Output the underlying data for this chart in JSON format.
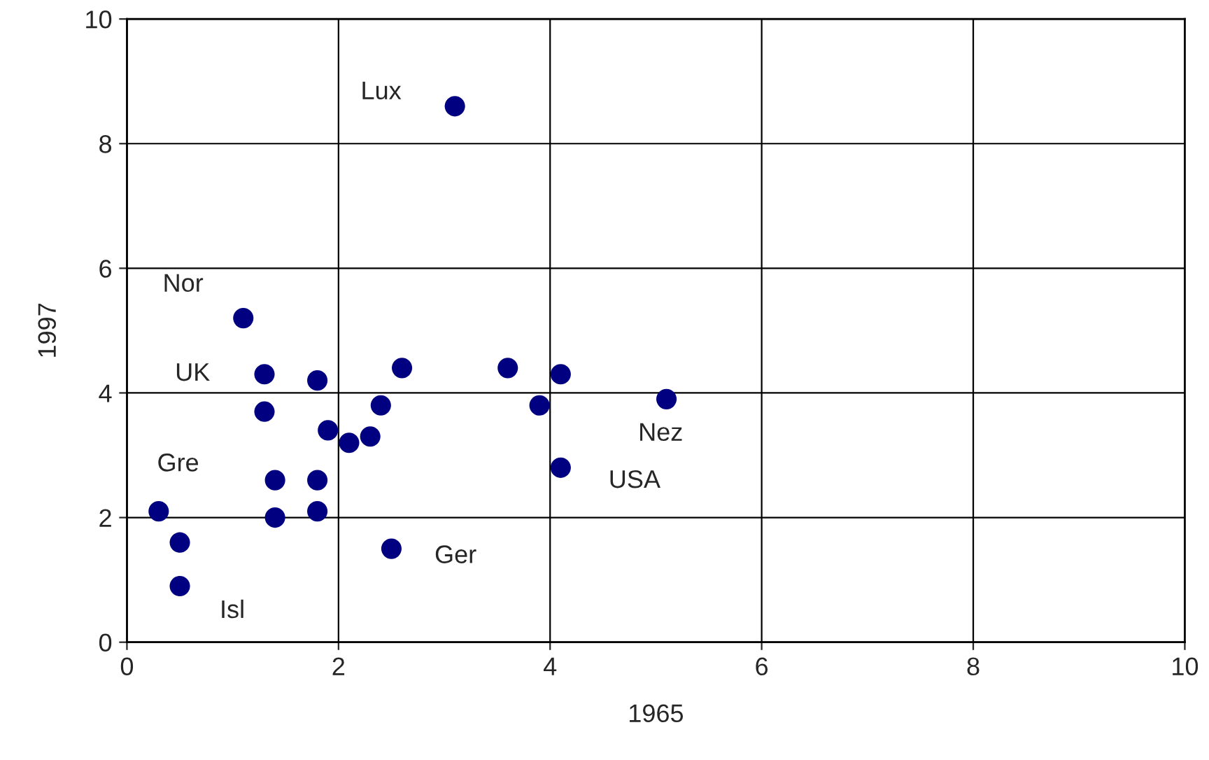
{
  "chart_data": {
    "type": "scatter",
    "xlabel": "1965",
    "ylabel": "1997",
    "x": [
      3.1,
      1.1,
      1.3,
      1.8,
      2.6,
      3.6,
      4.1,
      1.3,
      2.4,
      1.9,
      2.1,
      2.3,
      3.9,
      5.1,
      4.1,
      1.4,
      1.8,
      0.3,
      1.4,
      1.8,
      0.5,
      2.5,
      0.5
    ],
    "series": [
      {
        "color": "#000080",
        "values": [
          8.6,
          5.2,
          4.3,
          4.2,
          4.4,
          4.4,
          4.3,
          3.7,
          3.8,
          3.4,
          3.2,
          3.3,
          3.8,
          3.9,
          2.8,
          2.6,
          2.6,
          2.1,
          2.0,
          2.1,
          1.6,
          1.5,
          0.9
        ]
      }
    ],
    "annotations": [
      {
        "text": "Lux",
        "x": 3.1,
        "y": 8.6
      },
      {
        "text": "Nor",
        "x": 1.1,
        "y": 5.2
      },
      {
        "text": "UK",
        "x": 1.3,
        "y": 4.3
      },
      {
        "text": "Gre",
        "x": 0.3,
        "y": 2.1
      },
      {
        "text": "Isl",
        "x": 0.5,
        "y": 0.9
      },
      {
        "text": "Ger",
        "x": 2.5,
        "y": 1.5
      },
      {
        "text": "USA",
        "x": 4.1,
        "y": 2.8
      },
      {
        "text": "Nez",
        "x": 5.1,
        "y": 3.9
      }
    ],
    "xlim": [
      0,
      10
    ],
    "ylim": [
      0,
      10
    ],
    "xticks": [
      0,
      2,
      4,
      6,
      8,
      10
    ],
    "yticks": [
      0,
      2,
      4,
      6,
      8,
      10
    ],
    "grid": true,
    "marker": "circle"
  }
}
